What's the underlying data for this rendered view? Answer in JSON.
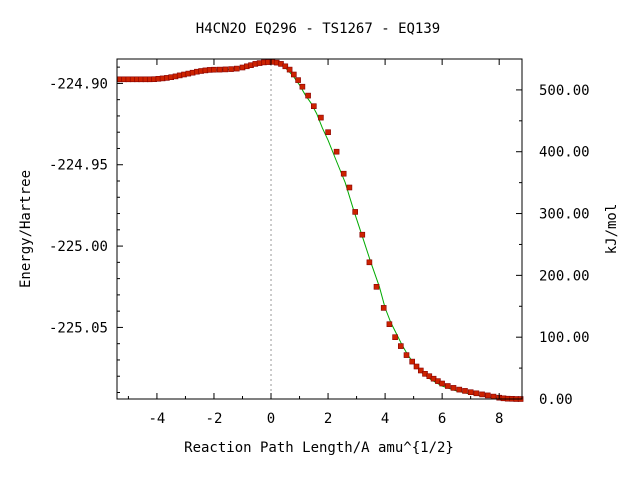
{
  "chart_data": {
    "type": "line",
    "title": "H4CN2O   EQ296 - TS1267 - EQ139",
    "xlabel": "Reaction Path Length/A amu^{1/2}",
    "ylabel": "Energy/Hartree",
    "y2label": "kJ/mol",
    "xlim": [
      -5.4,
      8.8
    ],
    "ylim": [
      -225.094,
      -224.885
    ],
    "y2lim": [
      0,
      550
    ],
    "xticks": [
      -4,
      -2,
      0,
      2,
      4,
      6,
      8
    ],
    "xtick_labels": [
      "-4",
      "-2",
      "0",
      "2",
      "4",
      "6",
      "8"
    ],
    "yticks": [
      -224.9,
      -224.95,
      -225.0,
      -225.05
    ],
    "ytick_labels": [
      "-224.90",
      "-224.95",
      "-225.00",
      "-225.05"
    ],
    "y2ticks": [
      0,
      100,
      200,
      300,
      400,
      500
    ],
    "y2tick_labels": [
      "0.00",
      "100.00",
      "200.00",
      "300.00",
      "400.00",
      "500.00"
    ],
    "ts_x": 0,
    "curve": {
      "x": [
        -5.4,
        -5.0,
        -4.5,
        -4.0,
        -3.5,
        -3.0,
        -2.5,
        -2.0,
        -1.5,
        -1.0,
        -0.5,
        -0.2,
        0.0,
        0.2,
        0.4,
        0.6,
        0.8,
        1.0,
        1.2,
        1.4,
        1.6,
        1.8,
        2.0,
        2.3,
        2.6,
        2.9,
        3.2,
        3.5,
        3.8,
        4.0,
        4.2,
        4.4,
        4.6,
        4.8,
        5.0,
        5.3,
        5.6,
        6.0,
        6.5,
        7.0,
        7.5,
        8.0,
        8.4,
        8.8
      ],
      "y": [
        -224.8975,
        -224.8975,
        -224.8975,
        -224.8973,
        -224.8963,
        -224.8945,
        -224.8927,
        -224.8918,
        -224.8914,
        -224.8902,
        -224.8882,
        -224.887,
        -224.8868,
        -224.8872,
        -224.889,
        -224.892,
        -224.896,
        -224.901,
        -224.907,
        -224.912,
        -224.9185,
        -224.9275,
        -224.935,
        -224.948,
        -224.961,
        -224.978,
        -224.994,
        -225.01,
        -225.025,
        -225.038,
        -225.047,
        -225.054,
        -225.061,
        -225.067,
        -225.072,
        -225.078,
        -225.082,
        -225.086,
        -225.089,
        -225.091,
        -225.0925,
        -225.0935,
        -225.094,
        -225.094
      ]
    },
    "markers": {
      "x": [
        -5.3,
        -5.15,
        -5.0,
        -4.85,
        -4.7,
        -4.55,
        -4.4,
        -4.25,
        -4.1,
        -3.95,
        -3.8,
        -3.65,
        -3.5,
        -3.35,
        -3.2,
        -3.05,
        -2.9,
        -2.75,
        -2.6,
        -2.45,
        -2.3,
        -2.15,
        -2.0,
        -1.8,
        -1.6,
        -1.4,
        -1.2,
        -1.0,
        -0.85,
        -0.7,
        -0.55,
        -0.4,
        -0.25,
        -0.1,
        0.05,
        0.2,
        0.35,
        0.5,
        0.65,
        0.8,
        0.95,
        1.1,
        1.3,
        1.5,
        1.75,
        2.0,
        2.3,
        2.55,
        2.75,
        2.95,
        3.2,
        3.45,
        3.7,
        3.95,
        4.15,
        4.35,
        4.55,
        4.75,
        4.95,
        5.1,
        5.25,
        5.4,
        5.55,
        5.7,
        5.85,
        6.0,
        6.2,
        6.4,
        6.6,
        6.8,
        7.0,
        7.2,
        7.4,
        7.6,
        7.8,
        8.0,
        8.15,
        8.3,
        8.45,
        8.6,
        8.75
      ],
      "y": [
        -224.8975,
        -224.8975,
        -224.8975,
        -224.8975,
        -224.8975,
        -224.8975,
        -224.8975,
        -224.8975,
        -224.8974,
        -224.8972,
        -224.8969,
        -224.8966,
        -224.8962,
        -224.8957,
        -224.8951,
        -224.8945,
        -224.894,
        -224.8934,
        -224.8928,
        -224.8924,
        -224.892,
        -224.8917,
        -224.8916,
        -224.8915,
        -224.8914,
        -224.8912,
        -224.8909,
        -224.8902,
        -224.8895,
        -224.8888,
        -224.888,
        -224.8875,
        -224.8871,
        -224.8869,
        -224.8868,
        -224.8872,
        -224.888,
        -224.8895,
        -224.8915,
        -224.8945,
        -224.898,
        -224.902,
        -224.9075,
        -224.914,
        -224.921,
        -224.93,
        -224.942,
        -224.9555,
        -224.964,
        -224.979,
        -224.993,
        -225.01,
        -225.025,
        -225.038,
        -225.048,
        -225.056,
        -225.0615,
        -225.067,
        -225.071,
        -225.074,
        -225.0765,
        -225.0785,
        -225.08,
        -225.0815,
        -225.083,
        -225.0845,
        -225.086,
        -225.0872,
        -225.0882,
        -225.089,
        -225.0898,
        -225.0905,
        -225.0912,
        -225.0918,
        -225.0925,
        -225.0932,
        -225.0936,
        -225.0938,
        -225.0939,
        -225.094,
        -225.094
      ]
    },
    "colors": {
      "curve": "#00aa00",
      "marker_fill": "#cc2200",
      "marker_edge": "#880000",
      "ts_line": "#999999",
      "frame": "#000000"
    }
  }
}
